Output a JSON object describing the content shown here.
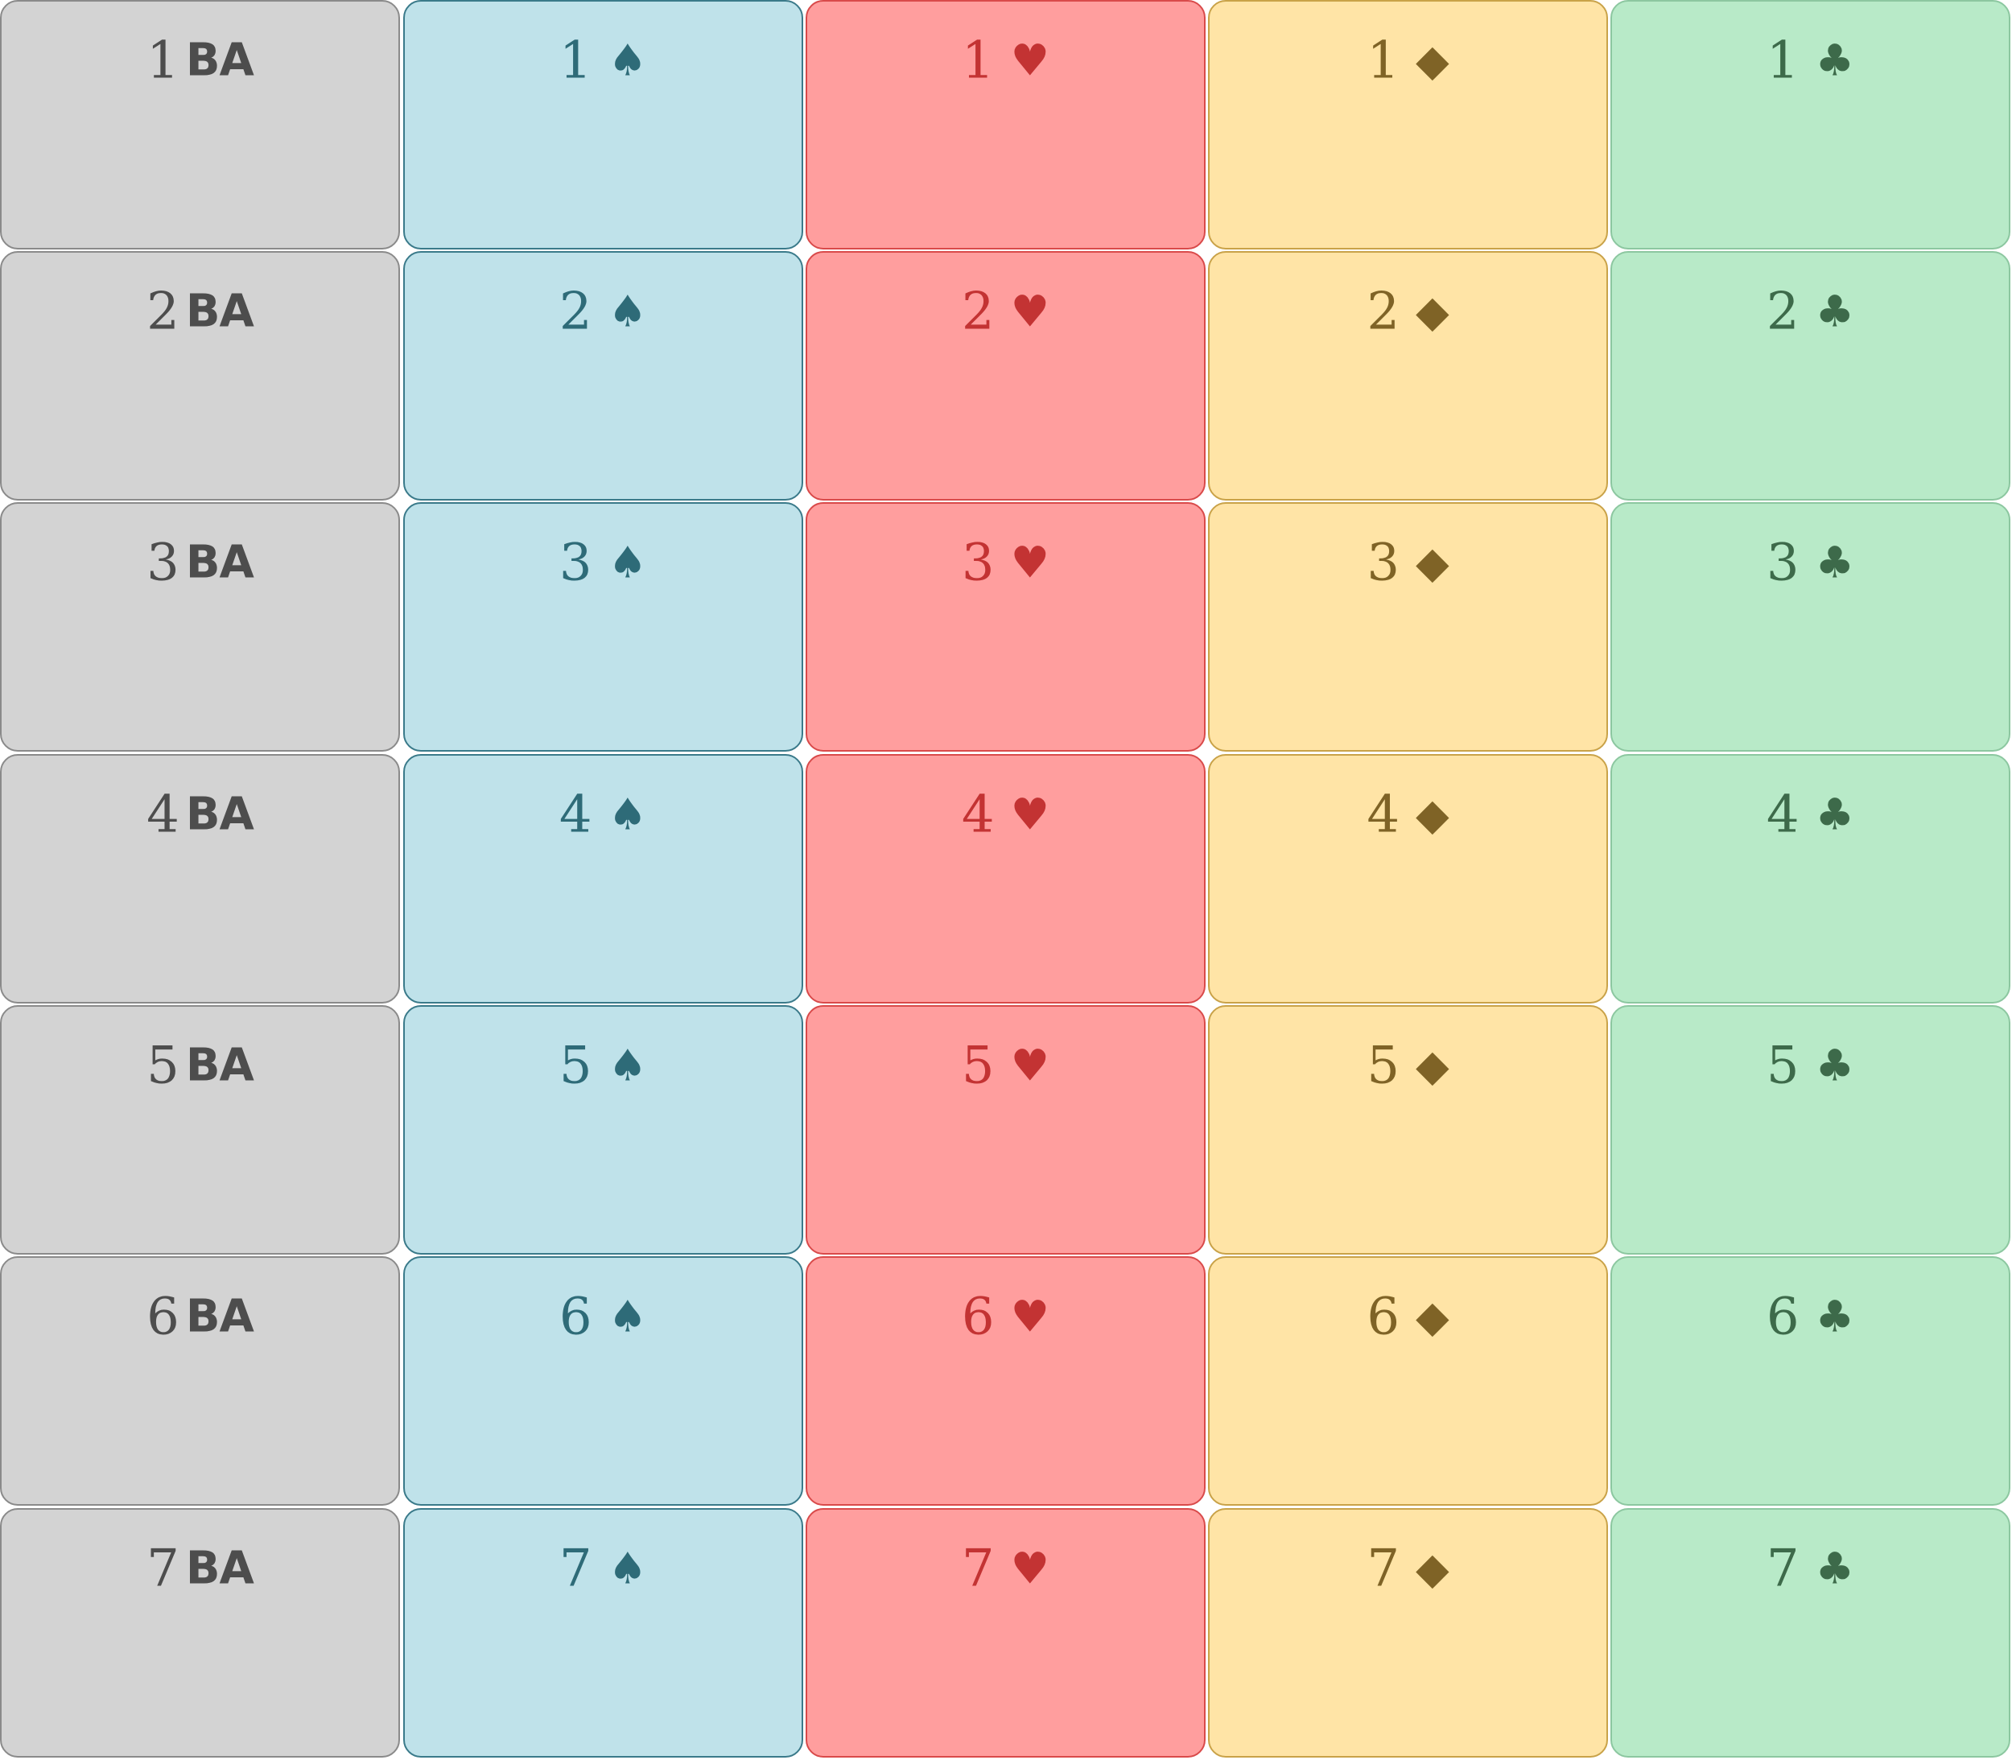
{
  "columns": [
    {
      "id": "no-trump",
      "glyph": "BA",
      "kind": "text",
      "icon": "no-trump-text",
      "fill": "#d3d3d3",
      "border": "#8a8a8a",
      "text": "#4d4d4d"
    },
    {
      "id": "spades",
      "glyph": "♠",
      "kind": "symbol",
      "icon": "spade-icon",
      "fill": "#bfe2ea",
      "border": "#3a7a8a",
      "text": "#2e6b78"
    },
    {
      "id": "hearts",
      "glyph": "♥",
      "kind": "symbol",
      "icon": "heart-icon",
      "fill": "#ff9e9e",
      "border": "#d94a4a",
      "text": "#c33333"
    },
    {
      "id": "diamonds",
      "glyph": "◆",
      "kind": "symbol",
      "icon": "diamond-icon",
      "fill": "#ffe4a6",
      "border": "#c9a248",
      "text": "#7f6326"
    },
    {
      "id": "clubs",
      "glyph": "♣",
      "kind": "symbol",
      "icon": "club-icon",
      "fill": "#b8eac8",
      "border": "#8cc7a0",
      "text": "#3d6a4a"
    }
  ],
  "levels": [
    "1",
    "2",
    "3",
    "4",
    "5",
    "6",
    "7"
  ]
}
